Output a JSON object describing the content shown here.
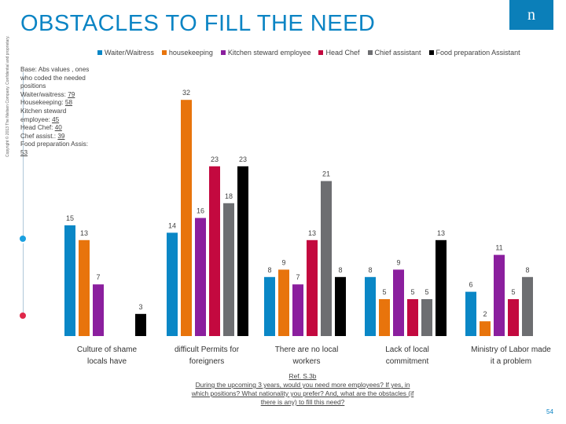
{
  "copyright": "Copyright © 2013 The Nielsen Company. Confidential and proprietary.",
  "title": "OBSTACLES TO FILL THE NEED",
  "logo_text": "n",
  "base_note": {
    "intro": "Base: Abs values , ones who coded the needed positions",
    "lines": [
      {
        "label": "Waiter/waitress:",
        "value": "79"
      },
      {
        "label": "Housekeeping:",
        "value": "58"
      },
      {
        "label": "Kitchen steward employee:",
        "value": "45"
      },
      {
        "label": "Head Chef:",
        "value": "40"
      },
      {
        "label": "Chef assist.:",
        "value": "39"
      },
      {
        "label": "Food preparation Assis:",
        "value": "53"
      }
    ]
  },
  "reference": {
    "code": "Ref. S.3b",
    "question": "During the upcoming 3 years, would you need more employees? If yes, in which positions? What nationality you prefer? And, what are the obstacles (if there is any) to fill this need?"
  },
  "page_number": "54",
  "chart_data": {
    "type": "bar",
    "title": "OBSTACLES TO FILL THE NEED",
    "legend_position": "top",
    "categories": [
      "Culture of shame locals have",
      "difficult Permits for foreigners",
      "There are no local workers",
      "Lack of local commitment",
      "Ministry of Labor made it a problem"
    ],
    "series": [
      {
        "name": "Waiter/Waitress",
        "color": "#0a87c6",
        "values": [
          15,
          14,
          8,
          8,
          6
        ]
      },
      {
        "name": "housekeeping",
        "color": "#e8740c",
        "values": [
          13,
          32,
          9,
          5,
          2
        ]
      },
      {
        "name": "Kitchen steward employee",
        "color": "#8b1f9e",
        "values": [
          7,
          16,
          7,
          9,
          11
        ]
      },
      {
        "name": "Head Chef",
        "color": "#c3093f",
        "values": [
          0,
          23,
          13,
          5,
          5
        ]
      },
      {
        "name": "Chief assistant",
        "color": "#6d6e71",
        "values": [
          0,
          18,
          21,
          5,
          8
        ]
      },
      {
        "name": "Food preparation Assistant",
        "color": "#000000",
        "values": [
          3,
          23,
          8,
          13,
          0
        ]
      }
    ],
    "ylim": [
      0,
      33
    ]
  }
}
